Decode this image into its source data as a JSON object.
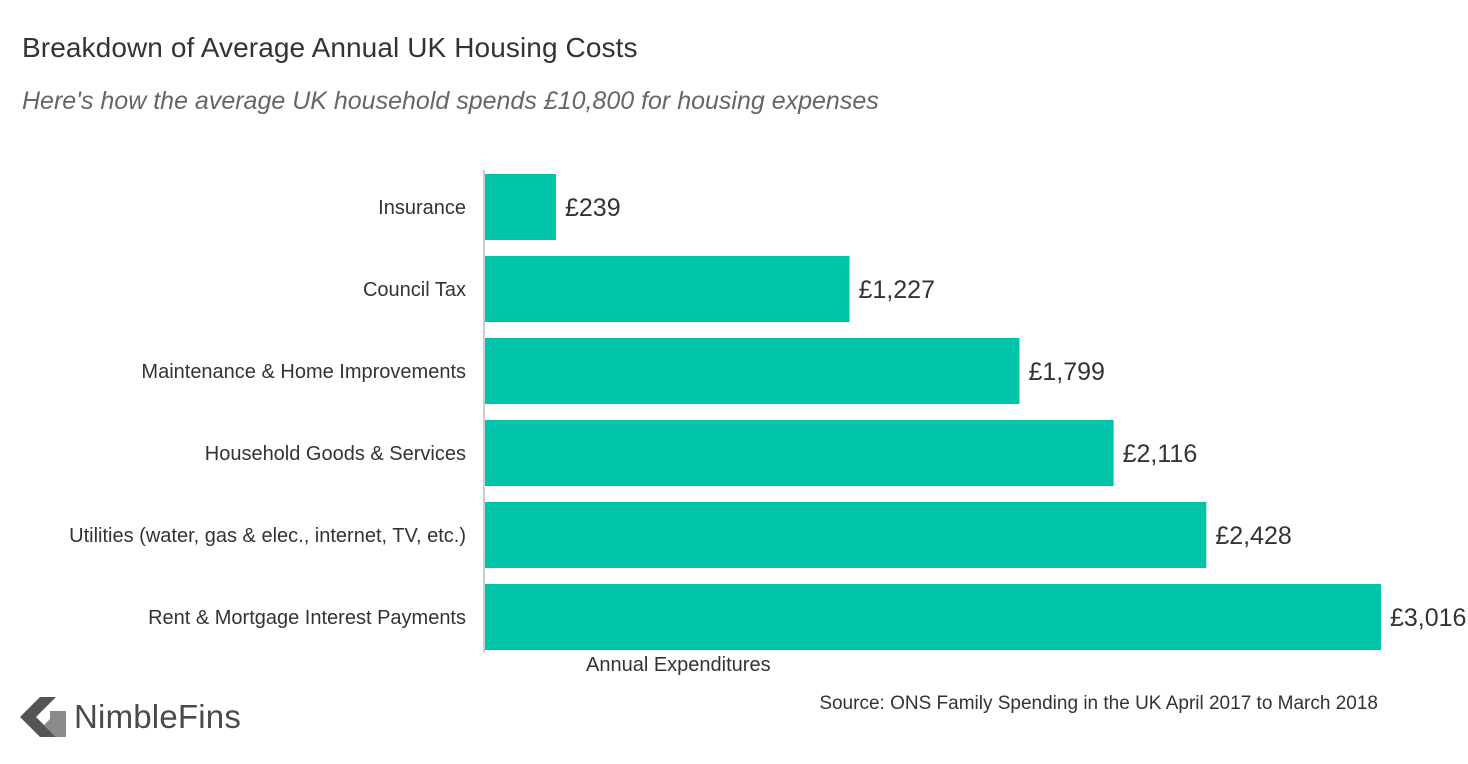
{
  "chart_data": {
    "type": "bar",
    "orientation": "horizontal",
    "title": "Breakdown of Average Annual UK Housing Costs",
    "subtitle": "Here's how the average UK household spends £10,800 for housing expenses",
    "categories": [
      "Insurance",
      "Council Tax",
      "Maintenance & Home Improvements",
      "Household Goods & Services",
      "Utilities (water, gas & elec., internet, TV, etc.)",
      "Rent & Mortgage Interest Payments"
    ],
    "values": [
      239,
      1227,
      1799,
      2116,
      2428,
      3016
    ],
    "value_labels": [
      "£239",
      "£1,227",
      "£1,799",
      "£2,116",
      "£2,428",
      "£3,016"
    ],
    "xlabel": "Annual Expenditures",
    "ylabel": "",
    "xlim": [
      0,
      3016
    ],
    "grid": false,
    "legend": "none",
    "bar_color": "#00c4aa",
    "source": "Source: ONS Family Spending in the UK April 2017 to March 2018"
  },
  "brand": {
    "name": "NimbleFins",
    "icon": "chevron-left-logo-icon",
    "color": "#4a4a4a"
  }
}
